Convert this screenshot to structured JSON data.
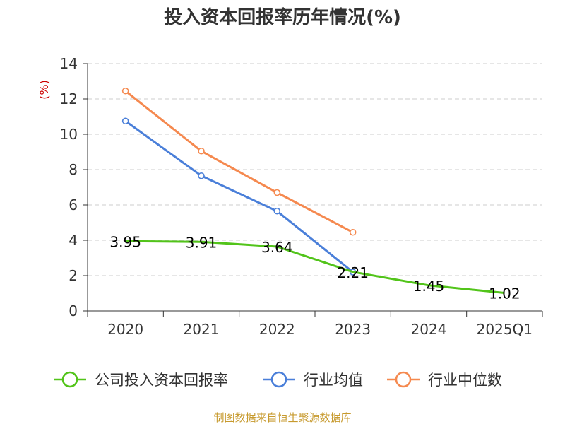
{
  "colors": {
    "company": "#52c41a",
    "avg": "#4a7fd9",
    "median": "#f5894f",
    "axis": "#333333",
    "grid": "#cccccc",
    "ylabel": "#cc0000",
    "source": "#c79a2e"
  },
  "chart_data": {
    "type": "line",
    "title": "投入资本回报率历年情况(%)",
    "ylabel": "(%)",
    "xlabel": "",
    "categories": [
      "2020",
      "2021",
      "2022",
      "2023",
      "2024",
      "2025Q1"
    ],
    "ylim": [
      0,
      14
    ],
    "yticks": [
      0,
      2,
      4,
      6,
      8,
      10,
      12,
      14
    ],
    "grid": true,
    "legend_position": "bottom",
    "series": [
      {
        "key": "company",
        "name": "公司投入资本回报率",
        "values": [
          3.95,
          3.91,
          3.64,
          2.21,
          1.45,
          1.02
        ],
        "labels": [
          "3.95",
          "3.91",
          "3.64",
          "2.21",
          "1.45",
          "1.02"
        ],
        "show_labels": true,
        "show_markers": false
      },
      {
        "key": "avg",
        "name": "行业均值",
        "values": [
          10.75,
          7.65,
          5.65,
          2.2,
          null,
          null
        ],
        "show_labels": false,
        "show_markers": true
      },
      {
        "key": "median",
        "name": "行业中位数",
        "values": [
          12.45,
          9.05,
          6.7,
          4.45,
          null,
          null
        ],
        "show_labels": false,
        "show_markers": true
      }
    ]
  },
  "footer": {
    "source": "制图数据来自恒生聚源数据库"
  }
}
